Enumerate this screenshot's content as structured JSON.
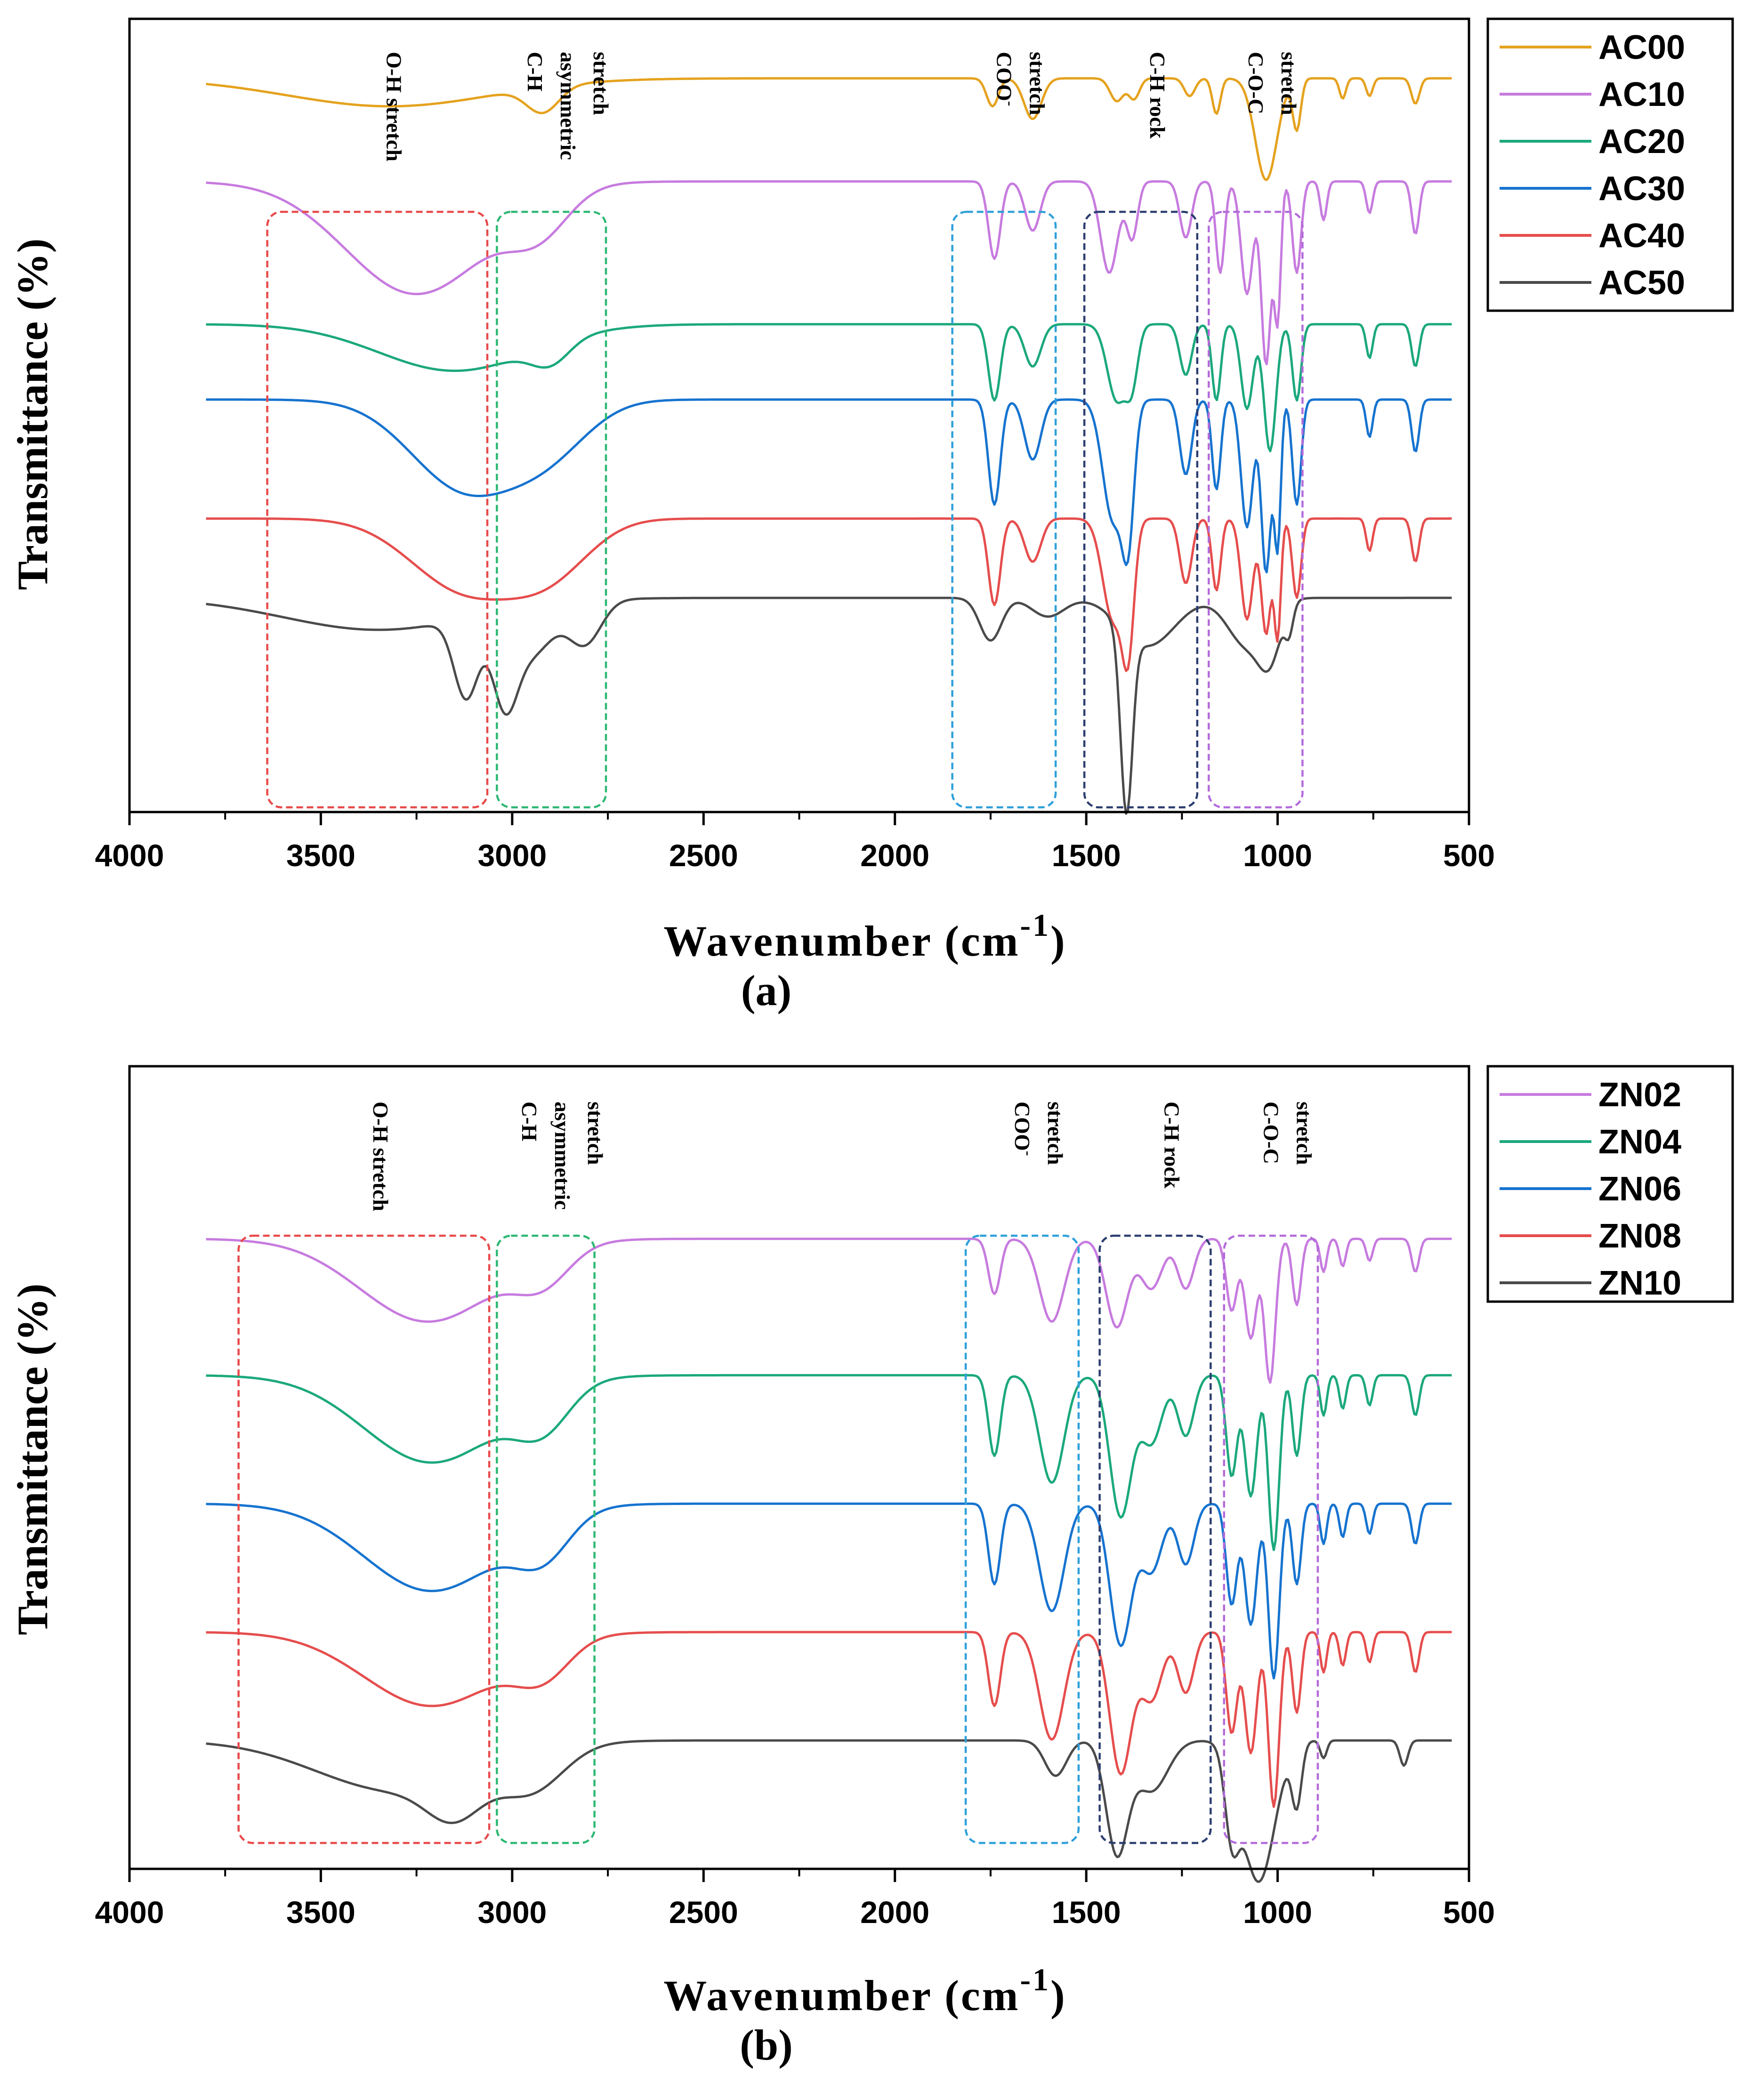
{
  "chart_data": [
    {
      "type": "line",
      "panel_label": "(a)",
      "xlabel": "Wavenumber (cm",
      "xlabel_sup": "-1",
      "xlabel_close": ")",
      "ylabel": "Transmittance (%)",
      "xlim": [
        4000,
        500
      ],
      "x_ticks": [
        4000,
        3500,
        3000,
        2500,
        2000,
        1500,
        1000,
        500
      ],
      "y_ticks": [],
      "grid": false,
      "legend_position": "top-right (outside)",
      "series": [
        {
          "name": "AC00",
          "color": "#E5A21E",
          "offset": 0.075,
          "depth": 0.4,
          "bands": [
            [
              3320,
              380,
              0.55
            ],
            [
              2920,
              60,
              0.5
            ],
            [
              1745,
              22,
              0.55
            ],
            [
              1640,
              32,
              0.8
            ],
            [
              1420,
              25,
              0.45
            ],
            [
              1375,
              20,
              0.4
            ],
            [
              1230,
              20,
              0.35
            ],
            [
              1160,
              15,
              0.7
            ],
            [
              1030,
              40,
              2.0
            ],
            [
              950,
              15,
              1.0
            ],
            [
              830,
              12,
              0.4
            ],
            [
              760,
              12,
              0.35
            ],
            [
              640,
              15,
              0.5
            ]
          ]
        },
        {
          "name": "AC10",
          "color": "#C77BDF",
          "offset": 0.205,
          "depth": 0.72,
          "bands": [
            [
              3250,
              260,
              1.6
            ],
            [
              2930,
              110,
              0.55
            ],
            [
              1740,
              22,
              1.1
            ],
            [
              1640,
              28,
              0.7
            ],
            [
              1440,
              32,
              1.3
            ],
            [
              1380,
              20,
              0.8
            ],
            [
              1240,
              22,
              0.8
            ],
            [
              1150,
              16,
              1.3
            ],
            [
              1080,
              22,
              1.6
            ],
            [
              1030,
              18,
              2.6
            ],
            [
              1000,
              12,
              1.9
            ],
            [
              950,
              16,
              1.3
            ],
            [
              880,
              12,
              0.55
            ],
            [
              760,
              12,
              0.45
            ],
            [
              640,
              14,
              0.75
            ]
          ]
        },
        {
          "name": "AC20",
          "color": "#1BA87C",
          "offset": 0.385,
          "depth": 0.5,
          "bands": [
            [
              3150,
              280,
              0.55
            ],
            [
              2900,
              70,
              0.25
            ],
            [
              1740,
              22,
              0.9
            ],
            [
              1640,
              30,
              0.5
            ],
            [
              1420,
              35,
              0.9
            ],
            [
              1380,
              22,
              0.6
            ],
            [
              1240,
              22,
              0.6
            ],
            [
              1160,
              16,
              0.9
            ],
            [
              1080,
              22,
              1.0
            ],
            [
              1020,
              22,
              1.5
            ],
            [
              950,
              16,
              0.9
            ],
            [
              760,
              12,
              0.4
            ],
            [
              640,
              14,
              0.5
            ]
          ]
        },
        {
          "name": "AC30",
          "color": "#1673CF",
          "offset": 0.48,
          "depth": 0.68,
          "bands": [
            [
              3120,
              200,
              1.2
            ],
            [
              2900,
              150,
              0.55
            ],
            [
              1740,
              22,
              1.4
            ],
            [
              1640,
              30,
              0.8
            ],
            [
              1430,
              38,
              1.6
            ],
            [
              1390,
              22,
              1.6
            ],
            [
              1240,
              22,
              1.0
            ],
            [
              1160,
              16,
              1.2
            ],
            [
              1080,
              22,
              1.7
            ],
            [
              1030,
              18,
              2.3
            ],
            [
              1000,
              12,
              1.9
            ],
            [
              950,
              16,
              1.4
            ],
            [
              760,
              12,
              0.5
            ],
            [
              640,
              14,
              0.7
            ]
          ]
        },
        {
          "name": "AC40",
          "color": "#E64D4D",
          "offset": 0.63,
          "depth": 0.6,
          "bands": [
            [
              3120,
              200,
              1.0
            ],
            [
              2900,
              150,
              0.65
            ],
            [
              1740,
              22,
              1.2
            ],
            [
              1640,
              30,
              0.6
            ],
            [
              1430,
              38,
              1.4
            ],
            [
              1390,
              22,
              1.6
            ],
            [
              1240,
              22,
              0.9
            ],
            [
              1160,
              16,
              1.0
            ],
            [
              1080,
              22,
              1.4
            ],
            [
              1030,
              18,
              1.6
            ],
            [
              1000,
              12,
              1.6
            ],
            [
              950,
              16,
              1.1
            ],
            [
              760,
              12,
              0.45
            ],
            [
              640,
              14,
              0.6
            ]
          ]
        },
        {
          "name": "AC50",
          "color": "#4A4A4A",
          "offset": 0.73,
          "depth": 0.85,
          "bands": [
            [
              3350,
              350,
              0.6
            ],
            [
              3120,
              45,
              1.5
            ],
            [
              3020,
              45,
              1.5
            ],
            [
              2950,
              80,
              0.9
            ],
            [
              2810,
              60,
              0.8
            ],
            [
              1750,
              40,
              0.8
            ],
            [
              1600,
              60,
              0.35
            ],
            [
              1395,
              22,
              3.4
            ],
            [
              1340,
              100,
              0.9
            ],
            [
              1080,
              70,
              0.9
            ],
            [
              1020,
              40,
              0.9
            ],
            [
              970,
              15,
              0.5
            ]
          ]
        }
      ],
      "annotations": [
        {
          "label_lines": [
            "O-H stretch"
          ],
          "range": [
            3640,
            3065
          ],
          "color": "#E84A4A"
        },
        {
          "label_lines": [
            "C-H",
            "asymmetric",
            "stretch"
          ],
          "range": [
            3040,
            2755
          ],
          "color": "#2DB873"
        },
        {
          "label_lines": [
            "COO",
            "stretch"
          ],
          "superscript": "-",
          "range": [
            1850,
            1580
          ],
          "color": "#2FA0DA"
        },
        {
          "label_lines": [
            "C-H rock"
          ],
          "range": [
            1505,
            1210
          ],
          "color": "#2C3E70"
        },
        {
          "label_lines": [
            "C-O-C",
            "stretch"
          ],
          "range": [
            1180,
            935
          ],
          "color": "#B36BDA"
        }
      ]
    },
    {
      "type": "line",
      "panel_label": "(b)",
      "xlabel": "Wavenumber (cm",
      "xlabel_sup": "-1",
      "xlabel_close": ")",
      "ylabel": "Transmittance (%)",
      "xlim": [
        4000,
        500
      ],
      "x_ticks": [
        4000,
        3500,
        3000,
        2500,
        2000,
        1500,
        1000,
        500
      ],
      "y_ticks": [],
      "grid": false,
      "legend_position": "top-right (outside)",
      "series": [
        {
          "name": "ZN02",
          "color": "#C77BDF",
          "offset": 0.215,
          "depth": 0.56,
          "bands": [
            [
              3220,
              250,
              1.5
            ],
            [
              2920,
              100,
              0.6
            ],
            [
              1740,
              22,
              1.0
            ],
            [
              1590,
              45,
              1.5
            ],
            [
              1420,
              40,
              1.6
            ],
            [
              1330,
              40,
              0.9
            ],
            [
              1240,
              30,
              0.9
            ],
            [
              1120,
              20,
              1.3
            ],
            [
              1070,
              22,
              1.8
            ],
            [
              1020,
              20,
              2.6
            ],
            [
              950,
              16,
              1.2
            ],
            [
              880,
              12,
              0.6
            ],
            [
              830,
              12,
              0.5
            ],
            [
              760,
              12,
              0.4
            ],
            [
              640,
              14,
              0.6
            ]
          ]
        },
        {
          "name": "ZN04",
          "color": "#1BA87C",
          "offset": 0.385,
          "depth": 0.68,
          "bands": [
            [
              3210,
              250,
              1.3
            ],
            [
              2920,
              100,
              0.6
            ],
            [
              1740,
              22,
              1.2
            ],
            [
              1590,
              45,
              1.6
            ],
            [
              1410,
              40,
              2.1
            ],
            [
              1330,
              40,
              1.0
            ],
            [
              1240,
              30,
              0.9
            ],
            [
              1120,
              20,
              1.5
            ],
            [
              1070,
              22,
              1.8
            ],
            [
              1010,
              20,
              2.6
            ],
            [
              950,
              16,
              1.2
            ],
            [
              880,
              12,
              0.6
            ],
            [
              830,
              12,
              0.5
            ],
            [
              760,
              12,
              0.45
            ],
            [
              640,
              14,
              0.6
            ]
          ]
        },
        {
          "name": "ZN06",
          "color": "#1673CF",
          "offset": 0.545,
          "depth": 0.68,
          "bands": [
            [
              3210,
              250,
              1.3
            ],
            [
              2920,
              100,
              0.6
            ],
            [
              1740,
              22,
              1.2
            ],
            [
              1590,
              45,
              1.6
            ],
            [
              1410,
              40,
              2.1
            ],
            [
              1330,
              40,
              1.0
            ],
            [
              1240,
              30,
              0.9
            ],
            [
              1120,
              20,
              1.5
            ],
            [
              1070,
              22,
              1.8
            ],
            [
              1010,
              20,
              2.6
            ],
            [
              950,
              16,
              1.2
            ],
            [
              880,
              12,
              0.6
            ],
            [
              830,
              12,
              0.5
            ],
            [
              760,
              12,
              0.45
            ],
            [
              640,
              14,
              0.6
            ]
          ]
        },
        {
          "name": "ZN08",
          "color": "#E64D4D",
          "offset": 0.705,
          "depth": 0.68,
          "bands": [
            [
              3210,
              250,
              1.1
            ],
            [
              2920,
              100,
              0.5
            ],
            [
              1740,
              22,
              1.1
            ],
            [
              1590,
              45,
              1.6
            ],
            [
              1410,
              40,
              2.1
            ],
            [
              1330,
              40,
              1.0
            ],
            [
              1240,
              30,
              0.9
            ],
            [
              1120,
              20,
              1.5
            ],
            [
              1070,
              22,
              1.8
            ],
            [
              1010,
              20,
              2.6
            ],
            [
              950,
              16,
              1.2
            ],
            [
              880,
              12,
              0.6
            ],
            [
              830,
              12,
              0.5
            ],
            [
              760,
              12,
              0.45
            ],
            [
              640,
              14,
              0.6
            ]
          ]
        },
        {
          "name": "ZN10",
          "color": "#4A4A4A",
          "offset": 0.84,
          "depth": 0.55,
          "bands": [
            [
              3300,
              300,
              1.0
            ],
            [
              3150,
              100,
              0.8
            ],
            [
              2950,
              120,
              0.8
            ],
            [
              1580,
              40,
              0.7
            ],
            [
              1420,
              40,
              2.2
            ],
            [
              1330,
              60,
              1.0
            ],
            [
              1120,
              25,
              1.5
            ],
            [
              1050,
              60,
              2.8
            ],
            [
              950,
              18,
              1.2
            ],
            [
              880,
              12,
              0.35
            ],
            [
              670,
              15,
              0.5
            ]
          ]
        }
      ],
      "annotations": [
        {
          "label_lines": [
            "O-H stretch"
          ],
          "range": [
            3715,
            3060
          ],
          "color": "#E84A4A"
        },
        {
          "label_lines": [
            "C-H",
            "asymmetric",
            "stretch"
          ],
          "range": [
            3040,
            2785
          ],
          "color": "#2DB873"
        },
        {
          "label_lines": [
            "COO",
            "stretch"
          ],
          "superscript": "-",
          "range": [
            1815,
            1520
          ],
          "color": "#2FA0DA"
        },
        {
          "label_lines": [
            "C-H rock"
          ],
          "range": [
            1465,
            1175
          ],
          "color": "#2C3E70"
        },
        {
          "label_lines": [
            "C-O-C",
            "stretch"
          ],
          "range": [
            1140,
            895
          ],
          "color": "#B36BDA"
        }
      ]
    }
  ]
}
